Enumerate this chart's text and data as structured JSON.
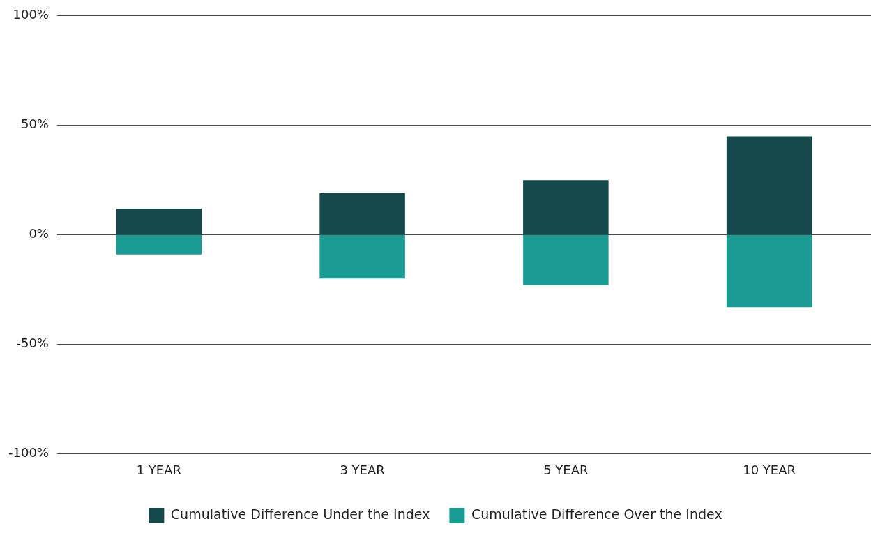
{
  "chart_data": {
    "type": "bar",
    "stacked": true,
    "categories": [
      "1 YEAR",
      "3 YEAR",
      "5 YEAR",
      "10 YEAR"
    ],
    "series": [
      {
        "name": "Cumulative Difference Under the Index",
        "color": "#15484a",
        "values": [
          12,
          19,
          25,
          45
        ]
      },
      {
        "name": "Cumulative Difference Over the Index",
        "color": "#1a9c94",
        "values": [
          -9,
          -20,
          -23,
          -33
        ]
      }
    ],
    "ylim": [
      -100,
      100
    ],
    "yticks": [
      {
        "value": -100,
        "label": "-100%"
      },
      {
        "value": -50,
        "label": "-50%"
      },
      {
        "value": 0,
        "label": "0%"
      },
      {
        "value": 50,
        "label": "50%"
      },
      {
        "value": 100,
        "label": "100%"
      }
    ],
    "grid": "y",
    "legend": "bottom"
  }
}
